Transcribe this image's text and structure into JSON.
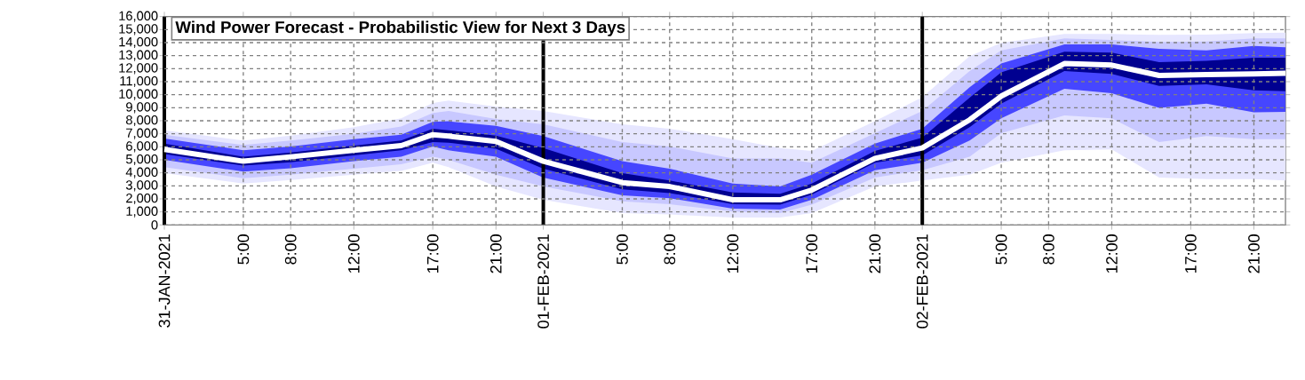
{
  "chart_data": {
    "type": "area",
    "title": "Wind Power Forecast - Probabilistic View for Next 3 Days",
    "x": [
      "2021-01-31T00:00",
      "2021-01-31T05:00",
      "2021-01-31T08:00",
      "2021-01-31T12:00",
      "2021-01-31T15:00",
      "2021-01-31T17:00",
      "2021-01-31T18:00",
      "2021-01-31T21:00",
      "2021-02-01T00:00",
      "2021-02-01T03:00",
      "2021-02-01T05:00",
      "2021-02-01T08:00",
      "2021-02-01T12:00",
      "2021-02-01T15:00",
      "2021-02-01T17:00",
      "2021-02-01T21:00",
      "2021-02-02T00:00",
      "2021-02-02T03:00",
      "2021-02-02T05:00",
      "2021-02-02T09:00",
      "2021-02-02T12:00",
      "2021-02-02T15:00",
      "2021-02-02T18:00",
      "2021-02-02T21:00",
      "2021-02-02T23:00"
    ],
    "series": [
      {
        "color": "#e6e6ff",
        "values": [
          null,
          null,
          null,
          null,
          null,
          null,
          null,
          null,
          null,
          null,
          null,
          null,
          null,
          null,
          null,
          null,
          null,
          null,
          null,
          null,
          null,
          null,
          null,
          null,
          null
        ],
        "upper": [
          7270,
          6480,
          6860,
          7500,
          8180,
          9360,
          9550,
          9090,
          8750,
          8140,
          7730,
          7390,
          6590,
          5910,
          5680,
          7960,
          9800,
          12960,
          13980,
          14660,
          14660,
          14590,
          14620,
          14730,
          14770
        ],
        "lower": [
          3980,
          3180,
          3450,
          3860,
          4140,
          4770,
          4430,
          2950,
          1930,
          1320,
          910,
          800,
          570,
          570,
          910,
          2950,
          3410,
          3860,
          4770,
          5730,
          5800,
          3640,
          3520,
          3520,
          3410
        ]
      },
      {
        "color": "#c8c8ff",
        "values": [
          null,
          null,
          null,
          null,
          null,
          null,
          null,
          null,
          null,
          null,
          null,
          null,
          null,
          null,
          null,
          null,
          null,
          null,
          null,
          null,
          null,
          null,
          null,
          null,
          null
        ],
        "upper": [
          6930,
          6140,
          6480,
          7000,
          7550,
          8590,
          8750,
          8140,
          7730,
          6910,
          6360,
          6020,
          5110,
          5110,
          4770,
          7050,
          8750,
          11820,
          13410,
          14320,
          14200,
          14050,
          14090,
          14320,
          14320
        ],
        "lower": [
          4430,
          3590,
          3860,
          4320,
          4660,
          5230,
          5000,
          3860,
          2950,
          2270,
          1820,
          1590,
          1020,
          910,
          1550,
          3640,
          4200,
          5230,
          7050,
          8410,
          8180,
          6360,
          6820,
          6590,
          6590
        ]
      },
      {
        "color": "#4646ff",
        "values": [
          null,
          null,
          null,
          null,
          null,
          null,
          null,
          null,
          null,
          null,
          null,
          null,
          null,
          null,
          null,
          null,
          null,
          null,
          null,
          null,
          null,
          null,
          null,
          null,
          null
        ],
        "upper": [
          6640,
          5730,
          6020,
          6590,
          6930,
          7910,
          7960,
          7610,
          6820,
          5660,
          4890,
          4320,
          3180,
          2950,
          3860,
          6250,
          7390,
          10570,
          12390,
          13860,
          13860,
          13520,
          13410,
          13750,
          13640
        ],
        "lower": [
          5000,
          4090,
          4360,
          4890,
          5230,
          6020,
          5730,
          5230,
          3640,
          2820,
          2270,
          2050,
          1250,
          1180,
          1930,
          4200,
          4770,
          6480,
          8180,
          10460,
          10110,
          8980,
          9320,
          8640,
          8680
        ]
      },
      {
        "color": "#000090",
        "values": [
          null,
          null,
          null,
          null,
          null,
          null,
          null,
          null,
          null,
          null,
          null,
          null,
          null,
          null,
          null,
          null,
          null,
          null,
          null,
          null,
          null,
          null,
          null,
          null,
          null
        ],
        "upper": [
          6250,
          5230,
          5570,
          6090,
          6480,
          7390,
          7270,
          6860,
          5910,
          4750,
          3980,
          3410,
          2500,
          2390,
          3180,
          5680,
          6710,
          9770,
          11710,
          13300,
          13230,
          12500,
          12610,
          12840,
          12840
        ],
        "lower": [
          5450,
          4550,
          4820,
          5340,
          5730,
          6360,
          6320,
          5860,
          4320,
          3360,
          2730,
          2450,
          1590,
          1550,
          2320,
          4770,
          5340,
          7500,
          9320,
          11820,
          11590,
          10680,
          10800,
          10340,
          10270
        ]
      },
      {
        "type": "line",
        "color": "#ffffff",
        "values": [
          5800,
          4890,
          5230,
          5730,
          6090,
          6930,
          6820,
          6410,
          4890,
          3910,
          3250,
          2950,
          1930,
          1930,
          2680,
          5110,
          5910,
          8070,
          9890,
          12390,
          12270,
          11480,
          11550,
          11590,
          11640
        ]
      }
    ],
    "xlim": [
      "2021-01-31T00:00",
      "2021-02-02T23:00"
    ],
    "xticks": [
      {
        "value": "2021-01-31T00:00",
        "label": "31-JAN-2021"
      },
      {
        "value": "2021-01-31T05:00",
        "label": "5:00"
      },
      {
        "value": "2021-01-31T08:00",
        "label": "8:00"
      },
      {
        "value": "2021-01-31T12:00",
        "label": "12:00"
      },
      {
        "value": "2021-01-31T17:00",
        "label": "17:00"
      },
      {
        "value": "2021-01-31T21:00",
        "label": "21:00"
      },
      {
        "value": "2021-02-01T00:00",
        "label": "01-FEB-2021"
      },
      {
        "value": "2021-02-01T05:00",
        "label": "5:00"
      },
      {
        "value": "2021-02-01T08:00",
        "label": "8:00"
      },
      {
        "value": "2021-02-01T12:00",
        "label": "12:00"
      },
      {
        "value": "2021-02-01T17:00",
        "label": "17:00"
      },
      {
        "value": "2021-02-01T21:00",
        "label": "21:00"
      },
      {
        "value": "2021-02-02T00:00",
        "label": "02-FEB-2021"
      },
      {
        "value": "2021-02-02T05:00",
        "label": "5:00"
      },
      {
        "value": "2021-02-02T08:00",
        "label": "8:00"
      },
      {
        "value": "2021-02-02T12:00",
        "label": "12:00"
      },
      {
        "value": "2021-02-02T17:00",
        "label": "17:00"
      },
      {
        "value": "2021-02-02T21:00",
        "label": "21:00"
      }
    ],
    "ylim": [
      0,
      16000
    ],
    "yticks": [
      0,
      {
        "value": 1000,
        "label": "1,000"
      },
      {
        "value": 2000,
        "label": "2,000"
      },
      {
        "value": 3000,
        "label": "3,000"
      },
      {
        "value": 4000,
        "label": "4,000"
      },
      {
        "value": 5000,
        "label": "5,000"
      },
      {
        "value": 6000,
        "label": "6,000"
      },
      {
        "value": 7000,
        "label": "7,000"
      },
      {
        "value": 8000,
        "label": "8,000"
      },
      {
        "value": 9000,
        "label": "9,000"
      },
      {
        "value": 10000,
        "label": "10,000"
      },
      {
        "value": 11000,
        "label": "11,000"
      },
      {
        "value": 12000,
        "label": "12,000"
      },
      {
        "value": 13000,
        "label": "13,000"
      },
      {
        "value": 14000,
        "label": "14,000"
      },
      {
        "value": 15000,
        "label": "15,000"
      },
      {
        "value": 16000,
        "label": "16,000"
      }
    ],
    "grid": true
  }
}
